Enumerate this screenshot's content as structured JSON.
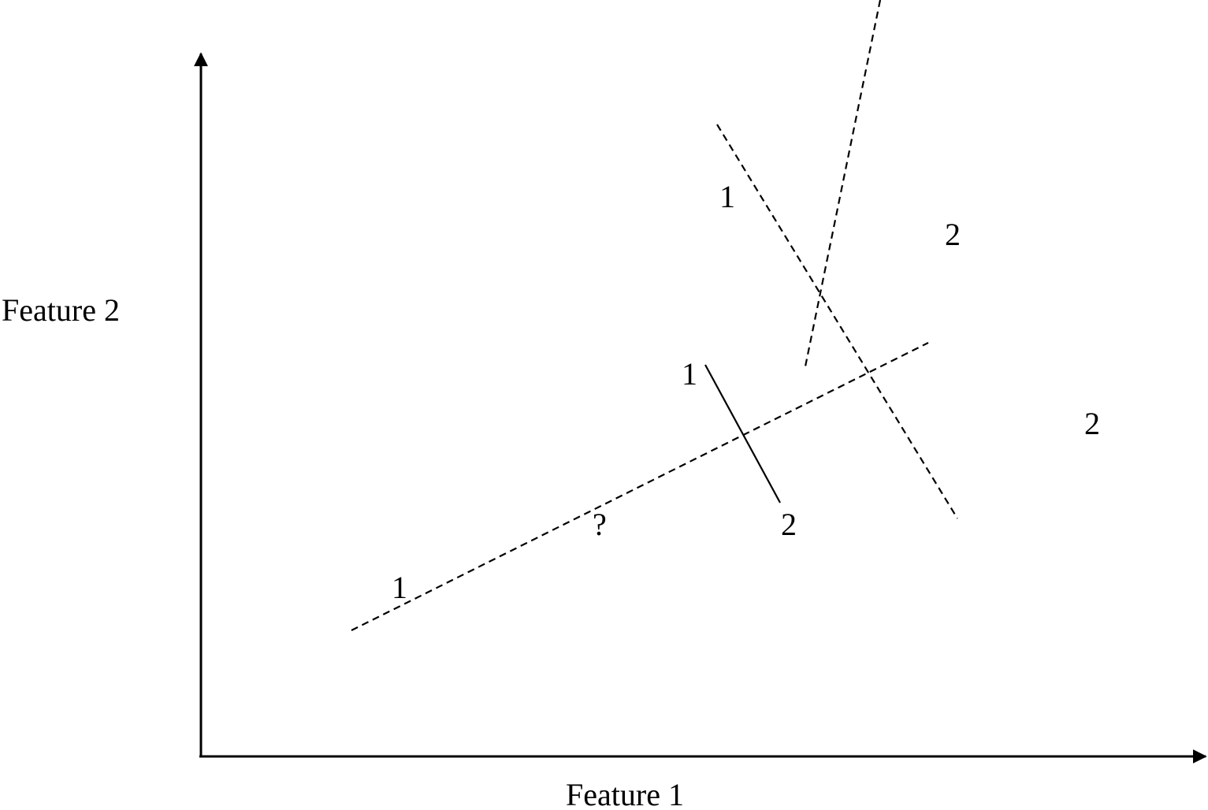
{
  "axes": {
    "x_label": "Feature 1",
    "y_label": "Feature 2"
  },
  "points": [
    {
      "label": "1"
    },
    {
      "label": "1"
    },
    {
      "label": "1"
    },
    {
      "label": "2"
    },
    {
      "label": "2"
    },
    {
      "label": "2"
    },
    {
      "label": "?"
    }
  ],
  "boundaries": [
    {
      "style": "dashed"
    },
    {
      "style": "dashed"
    },
    {
      "style": "dashed"
    },
    {
      "style": "solid"
    }
  ]
}
